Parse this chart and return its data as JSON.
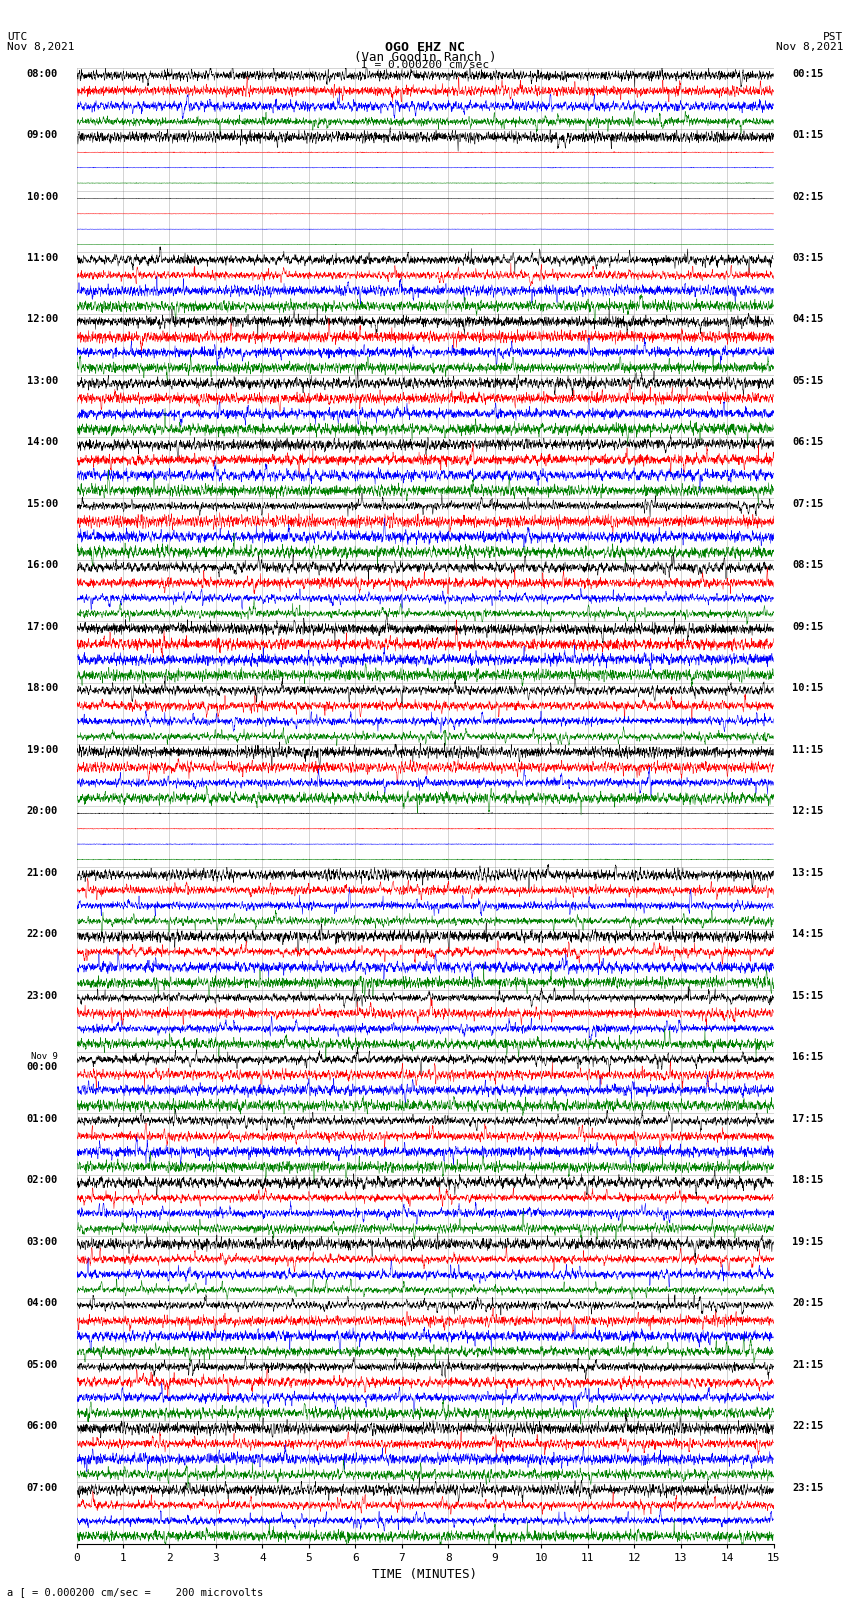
{
  "title_line1": "OGO EHZ NC",
  "title_line2": "(Van Goodin Ranch )",
  "title_scale": "I = 0.000200 cm/sec",
  "left_header_line1": "UTC",
  "left_header_line2": "Nov 8,2021",
  "right_header_line1": "PST",
  "right_header_line2": "Nov 8,2021",
  "xlabel": "TIME (MINUTES)",
  "footer": "a [ = 0.000200 cm/sec =    200 microvolts",
  "utc_times_major": [
    "08:00",
    "09:00",
    "10:00",
    "11:00",
    "12:00",
    "13:00",
    "14:00",
    "15:00",
    "16:00",
    "17:00",
    "18:00",
    "19:00",
    "20:00",
    "21:00",
    "22:00",
    "23:00",
    "Nov 9\n00:00",
    "01:00",
    "02:00",
    "03:00",
    "04:00",
    "05:00",
    "06:00",
    "07:00"
  ],
  "pst_times_major": [
    "00:15",
    "01:15",
    "02:15",
    "03:15",
    "04:15",
    "05:15",
    "06:15",
    "07:15",
    "08:15",
    "09:15",
    "10:15",
    "11:15",
    "12:15",
    "13:15",
    "14:15",
    "15:15",
    "16:15",
    "17:15",
    "18:15",
    "19:15",
    "20:15",
    "21:15",
    "22:15",
    "23:15"
  ],
  "num_rows": 96,
  "traces_per_row": 1,
  "colors_cycle": [
    "black",
    "red",
    "blue",
    "green"
  ],
  "bg_color": "white",
  "seed": 12345,
  "row_activity": [
    2.5,
    2.5,
    2.5,
    2.5,
    2.5,
    0.2,
    0.15,
    0.15,
    0.1,
    0.1,
    0.1,
    0.1,
    0.5,
    2.0,
    0.5,
    0.5,
    2.5,
    2.5,
    2.5,
    2.5,
    0.3,
    2.5,
    2.0,
    2.0,
    2.5,
    2.5,
    2.5,
    2.5,
    2.5,
    2.0,
    2.0,
    0.8,
    2.5,
    0.8,
    2.5,
    2.5,
    0.8,
    2.5,
    2.5,
    2.5,
    2.5,
    2.5,
    2.5,
    2.5,
    2.5,
    2.5,
    2.5,
    2.5,
    0.2,
    0.2,
    0.2,
    0.2,
    0.3,
    2.5,
    2.5,
    2.5,
    2.5,
    2.5,
    2.5,
    2.5,
    2.5,
    2.5,
    2.5,
    2.5,
    2.5,
    2.5,
    2.5,
    0.3,
    2.5,
    2.5,
    2.5,
    2.5,
    2.5,
    2.5,
    2.5,
    2.5,
    2.5,
    0.5,
    2.5,
    2.5,
    2.5,
    2.5,
    0.5,
    0.5,
    0.3,
    2.5,
    2.5,
    2.5,
    2.5,
    2.5,
    2.5,
    2.5,
    2.5,
    2.5,
    2.5,
    2.5
  ]
}
